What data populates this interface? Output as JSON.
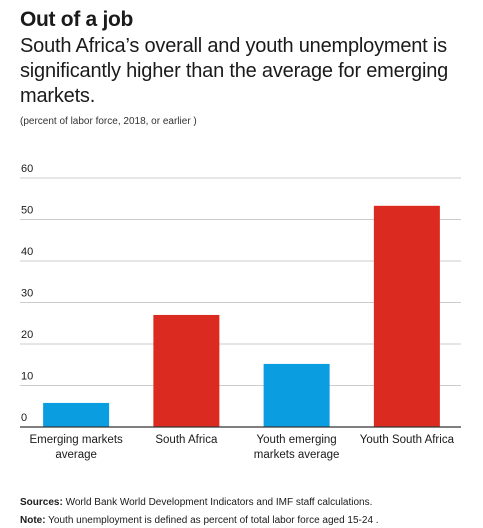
{
  "header": {
    "title": "Out of a job",
    "subtitle": "South Africa’s overall and youth unemployment is significantly higher than the average for emerging markets.",
    "units": "(percent of labor force, 2018, or earlier )"
  },
  "footer": {
    "sources_label": "Sources:",
    "sources_text": " World Bank World Development Indicators and IMF staff calculations.",
    "note_label": "Note:",
    "note_text": " Youth unemployment is defined as percent of total labor force aged 15-24 ."
  },
  "colors": {
    "emerging": "#0a9de0",
    "south_africa": "#db2a1f",
    "grid": "#cccccc",
    "axis": "#333333",
    "text": "#1a1a1a"
  },
  "chart_data": {
    "type": "bar",
    "title": "Out of a job",
    "categories": [
      [
        "Emerging markets",
        "average"
      ],
      [
        "South Africa"
      ],
      [
        "Youth emerging",
        "markets average"
      ],
      [
        "Youth South Africa"
      ]
    ],
    "values": [
      5.8,
      27.0,
      15.2,
      53.3
    ],
    "bar_colors": [
      "#0a9de0",
      "#db2a1f",
      "#0a9de0",
      "#db2a1f"
    ],
    "ylim": [
      0,
      60
    ],
    "yticks": [
      0,
      10,
      20,
      30,
      40,
      50,
      60
    ],
    "grid": true,
    "xlabel": "",
    "ylabel": ""
  }
}
